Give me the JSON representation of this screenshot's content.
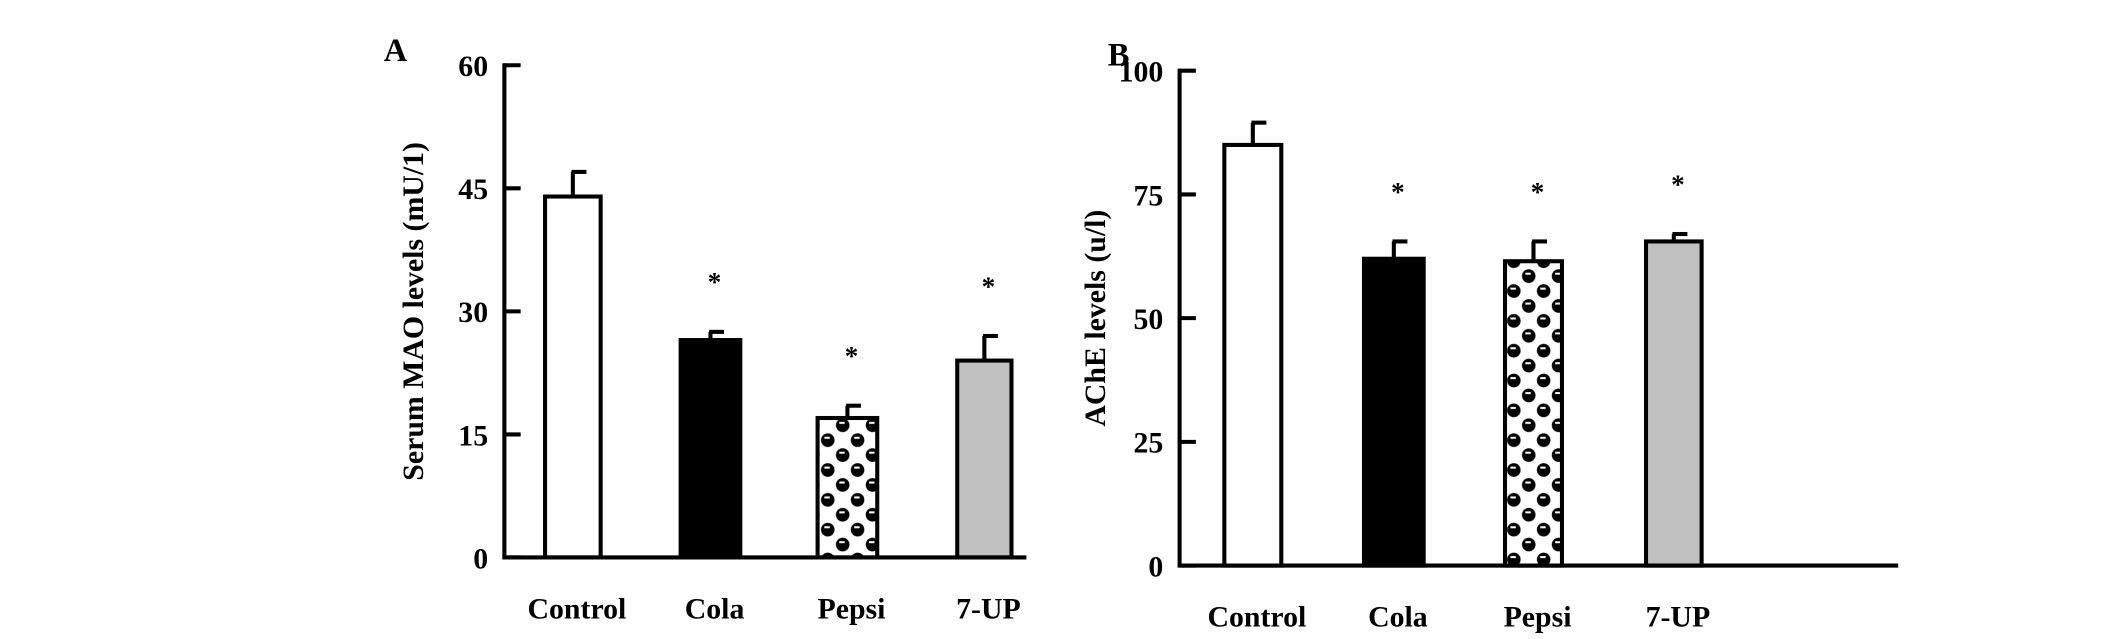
{
  "chart_data": [
    {
      "type": "bar",
      "panel_label": "A",
      "title": "",
      "xlabel": "",
      "ylabel": "Serum MAO levels (mU/1)",
      "categories": [
        "Control",
        "Cola",
        "Pepsi",
        "7-UP"
      ],
      "values": [
        44,
        26.5,
        17,
        24
      ],
      "errors": [
        3,
        1,
        1.5,
        3
      ],
      "significant": [
        false,
        true,
        true,
        true
      ],
      "significance_marker": "*",
      "ylim": [
        0,
        60
      ],
      "yticks": [
        0,
        15,
        30,
        45,
        60
      ],
      "fills": [
        "white",
        "black",
        "checker-circles",
        "#c0c0c0"
      ],
      "grid": false
    },
    {
      "type": "bar",
      "panel_label": "B",
      "title": "",
      "xlabel": "",
      "ylabel": "AChE levels (u/l)",
      "categories": [
        "Control",
        "Cola",
        "Pepsi",
        "7-UP"
      ],
      "values": [
        85,
        62,
        61.5,
        65.5
      ],
      "errors": [
        4.5,
        3.5,
        4,
        1.5
      ],
      "significant": [
        false,
        true,
        true,
        true
      ],
      "significance_marker": "*",
      "ylim": [
        0,
        100
      ],
      "yticks": [
        0,
        25,
        50,
        75,
        100
      ],
      "fills": [
        "white",
        "black",
        "checker-circles",
        "#c0c0c0"
      ],
      "grid": false
    }
  ]
}
